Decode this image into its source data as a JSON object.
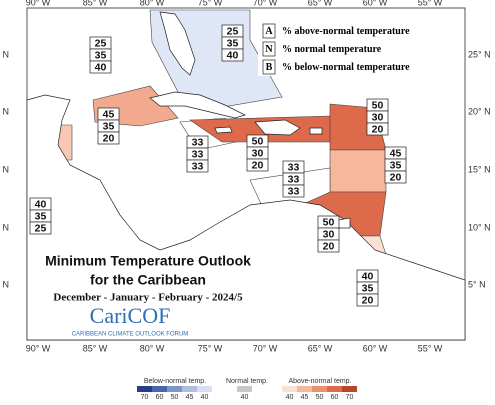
{
  "map": {
    "lon_labels": [
      "90° W",
      "85° W",
      "80° W",
      "75° W",
      "70° W",
      "65° W",
      "60° W",
      "55° W"
    ],
    "lat_labels": [
      "25° N",
      "20° N",
      "15° N",
      "10° N",
      "5° N"
    ]
  },
  "legend": [
    {
      "letter": "A",
      "text": "% above-normal temperature"
    },
    {
      "letter": "N",
      "text": "% normal temperature"
    },
    {
      "letter": "B",
      "text": "% below-normal temperature"
    }
  ],
  "regions": [
    {
      "values": [
        25,
        35,
        40
      ],
      "color": "#dfe7f6"
    },
    {
      "values": [
        25,
        35,
        40
      ],
      "color": "#ffffff"
    },
    {
      "values": [
        45,
        35,
        20
      ],
      "color": "#f2a98e"
    },
    {
      "values": [
        33,
        33,
        33
      ],
      "color": "#ffffff"
    },
    {
      "values": [
        50,
        30,
        20
      ],
      "color": "#de6a4c"
    },
    {
      "values": [
        50,
        30,
        20
      ],
      "color": "#de6a4c"
    },
    {
      "values": [
        45,
        35,
        20
      ],
      "color": "#f6b79d"
    },
    {
      "values": [
        40,
        35,
        25
      ],
      "color": "#f7c8b4"
    },
    {
      "values": [
        33,
        33,
        33
      ],
      "color": "#ffffff"
    },
    {
      "values": [
        50,
        30,
        20
      ],
      "color": "#de6a4c"
    },
    {
      "values": [
        40,
        35,
        20
      ],
      "color": "#fbe0d4"
    }
  ],
  "title": {
    "line1": "Minimum Temperature Outlook",
    "line2": "for the Caribbean",
    "period": "December - January - February - 2024/5"
  },
  "logo": {
    "name": "CariCOF",
    "tagline": "CARIBBEAN CLIMATE OUTLOOK FORUM"
  },
  "colorbar": {
    "below": {
      "label": "Below-normal temp.",
      "ticks": [
        70,
        60,
        50,
        45,
        40
      ],
      "colors": [
        "#283c8c",
        "#4a65b0",
        "#7e96cd",
        "#aebde0",
        "#d6def0"
      ]
    },
    "normal": {
      "label": "Normal temp.",
      "ticks": [
        40
      ],
      "colors": [
        "#c8c8c8"
      ]
    },
    "above": {
      "label": "Above-normal temp.",
      "ticks": [
        40,
        45,
        50,
        60,
        70
      ],
      "colors": [
        "#fbe0d4",
        "#f6b79d",
        "#ee8f70",
        "#de6a4c",
        "#b8452d"
      ]
    }
  }
}
